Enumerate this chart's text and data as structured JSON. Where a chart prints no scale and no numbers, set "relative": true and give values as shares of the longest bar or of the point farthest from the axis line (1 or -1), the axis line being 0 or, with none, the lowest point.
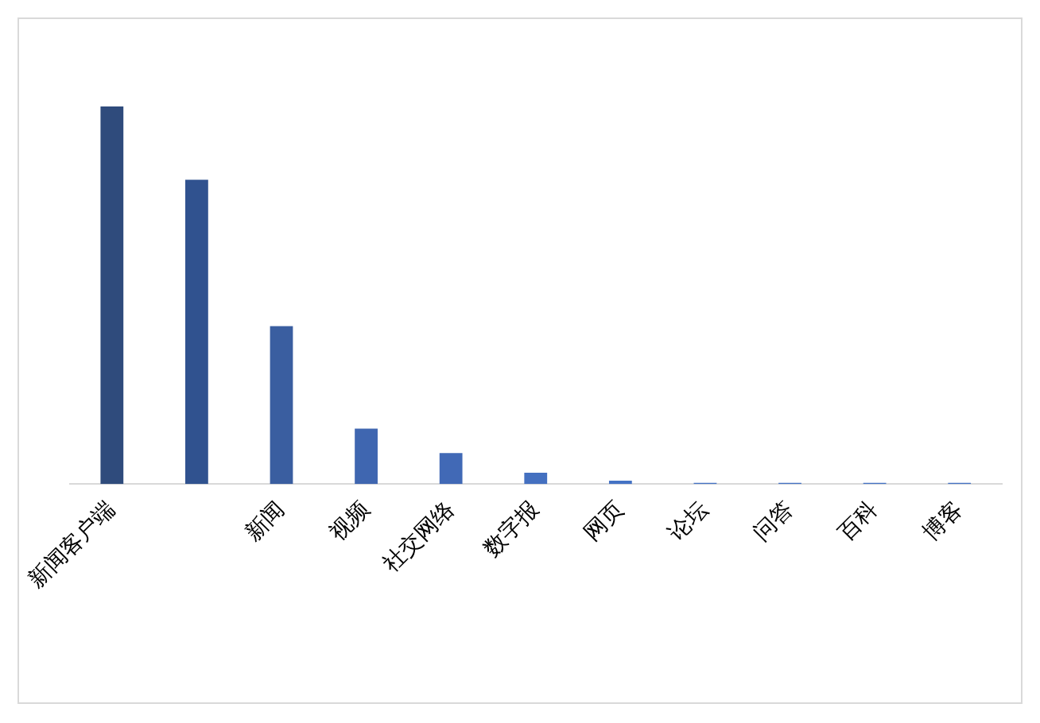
{
  "chart_data": {
    "type": "bar",
    "relative": true,
    "categories": [
      "新闻客户端",
      null,
      "新闻",
      "视频",
      "社交网络",
      "数字报",
      "网页",
      "论坛",
      "问答",
      "百科",
      "博客"
    ],
    "values": [
      1,
      0.806,
      0.418,
      0.147,
      0.082,
      0.03,
      0.009,
      0.003,
      0.003,
      0.003,
      0.003
    ],
    "colors": [
      "#2f4b7c",
      "#30528f",
      "#3a5ea0",
      "#3f66b0",
      "#4169b6",
      "#4470c0",
      "#4472c4",
      "#4472c4",
      "#4472c4",
      "#4472c4",
      "#4472c4"
    ],
    "grid": false,
    "legend": false
  }
}
